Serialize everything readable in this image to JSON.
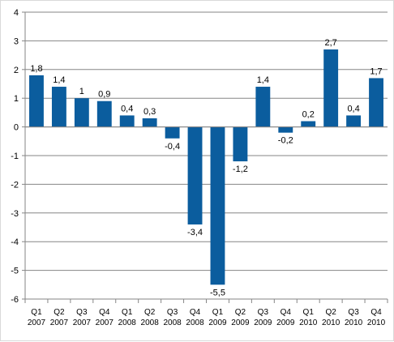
{
  "chart_data": {
    "type": "bar",
    "categories": [
      [
        "Q1",
        "2007"
      ],
      [
        "Q2",
        "2007"
      ],
      [
        "Q3",
        "2007"
      ],
      [
        "Q4",
        "2007"
      ],
      [
        "Q1",
        "2008"
      ],
      [
        "Q2",
        "2008"
      ],
      [
        "Q3",
        "2008"
      ],
      [
        "Q4",
        "2008"
      ],
      [
        "Q1",
        "2009"
      ],
      [
        "Q2",
        "2009"
      ],
      [
        "Q3",
        "2009"
      ],
      [
        "Q4",
        "2009"
      ],
      [
        "Q1",
        "2010"
      ],
      [
        "Q2",
        "2010"
      ],
      [
        "Q3",
        "2010"
      ],
      [
        "Q4",
        "2010"
      ]
    ],
    "values": [
      1.8,
      1.4,
      1,
      0.9,
      0.4,
      0.3,
      -0.4,
      -3.4,
      -5.5,
      -1.2,
      1.4,
      -0.2,
      0.2,
      2.7,
      0.4,
      1.7
    ],
    "data_labels": [
      "1,8",
      "1,4",
      "1",
      "0,9",
      "0,4",
      "0,3",
      "-0,4",
      "-3,4",
      "-5,5",
      "-1,2",
      "1,4",
      "-0,2",
      "0,2",
      "2,7",
      "0,4",
      "1,7"
    ],
    "y_ticks": [
      4,
      3,
      2,
      1,
      0,
      -1,
      -2,
      -3,
      -4,
      -5,
      -6
    ],
    "y_tick_labels": [
      "4",
      "3",
      "2",
      "1",
      "0",
      "-1",
      "-2",
      "-3",
      "-4",
      "-5",
      "-6"
    ],
    "ylim": [
      -6,
      4
    ],
    "grid": true,
    "bar_color": "#0b5d9e",
    "grid_color": "#868686",
    "title": "",
    "xlabel": "",
    "ylabel": ""
  }
}
